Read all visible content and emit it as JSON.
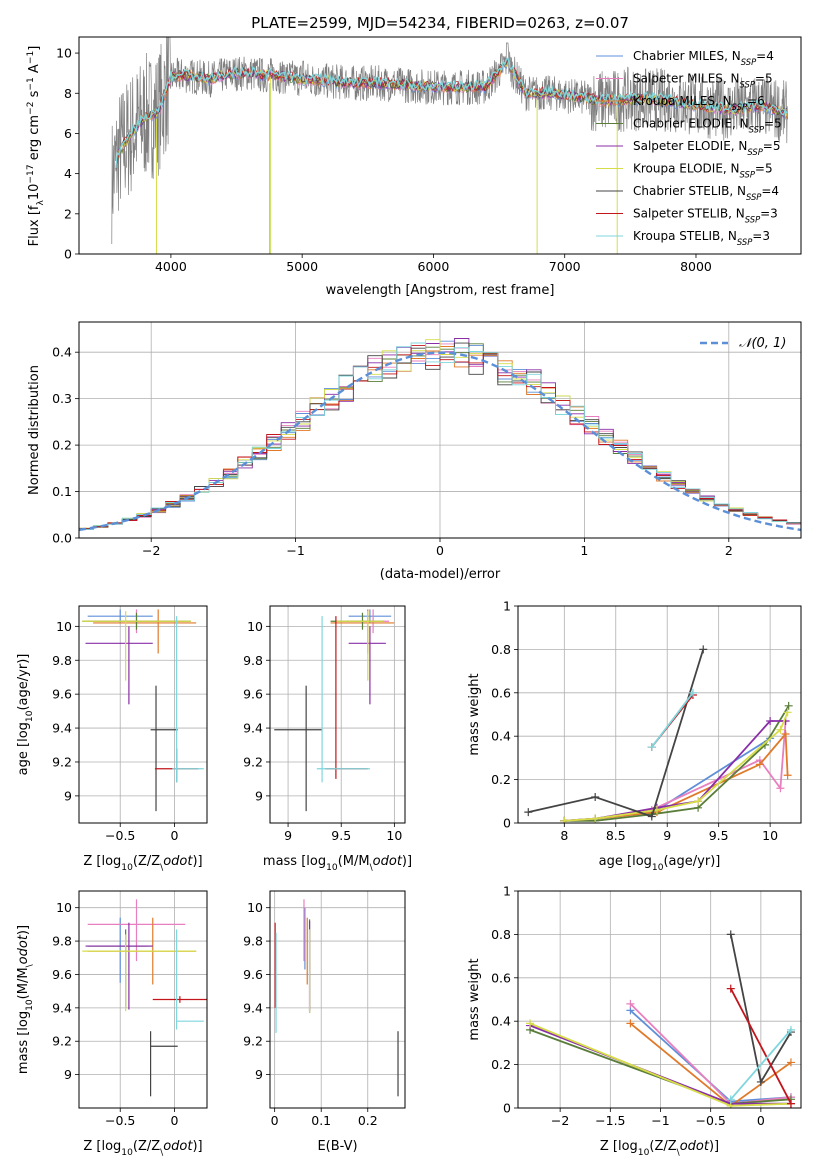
{
  "chart_data": [
    {
      "id": "spectrum",
      "type": "line",
      "title": "PLATE=2599, MJD=54234, FIBERID=0263, z=0.07",
      "xlabel": "wavelength [Angstrom, rest frame]",
      "ylabel": "Flux [f$_\\lambda$10$^{-17}$ erg cm$^{-2}$ s$^{-1}$ A$^{-1}$]",
      "ylabel_display": "Flux [fλ10⁻¹⁷ erg cm⁻² s⁻¹ A⁻¹]",
      "xlim": [
        3300,
        8800
      ],
      "ylim": [
        0,
        10.8
      ],
      "xticks": [
        4000,
        5000,
        6000,
        7000,
        8000
      ],
      "yticks": [
        0,
        2,
        4,
        6,
        8,
        10
      ],
      "grid": false,
      "legend_position": "top-right",
      "data_envelope": {
        "x": [
          3550,
          3600,
          3700,
          3800,
          3900,
          4000,
          4100,
          4200,
          4300,
          4400,
          4500,
          4600,
          4700,
          4800,
          4900,
          5000,
          5200,
          5400,
          5600,
          5800,
          6000,
          6200,
          6400,
          6563,
          6700,
          6900,
          7100,
          7300,
          7500,
          7700,
          7900,
          8100,
          8300,
          8500,
          8700
        ],
        "y": [
          3.6,
          5.0,
          6.0,
          6.8,
          7.0,
          8.8,
          8.9,
          8.8,
          8.7,
          8.9,
          9.0,
          9.0,
          8.9,
          8.9,
          8.8,
          8.7,
          8.6,
          8.5,
          8.5,
          8.4,
          8.3,
          8.3,
          8.3,
          9.6,
          8.0,
          8.0,
          7.8,
          7.6,
          7.7,
          7.7,
          7.5,
          7.3,
          7.2,
          7.4,
          7.0
        ]
      },
      "series": [
        {
          "name": "Chabrier MILES, N$_{SSP}$=4",
          "label": "Chabrier MILES, N",
          "sub": "SSP",
          "suffix": "=4",
          "color": "#5f8fd8"
        },
        {
          "name": "Salpeter MILES, N$_{SSP}$=5",
          "label": "Salpeter MILES, N",
          "sub": "SSP",
          "suffix": "=5",
          "color": "#e87fbf"
        },
        {
          "name": "Kroupa MILES, N$_{SSP}$=6",
          "label": "Kroupa MILES, N",
          "sub": "SSP",
          "suffix": "=6",
          "color": "#e07a2a"
        },
        {
          "name": "Chabrier ELODIE, N$_{SSP}$=5",
          "label": "Chabrier ELODIE, N",
          "sub": "SSP",
          "suffix": "=5",
          "color": "#5a7d3a"
        },
        {
          "name": "Salpeter ELODIE, N$_{SSP}$=5",
          "label": "Salpeter ELODIE, N",
          "sub": "SSP",
          "suffix": "=5",
          "color": "#8a2ea8"
        },
        {
          "name": "Kroupa ELODIE, N$_{SSP}$=5",
          "label": "Kroupa ELODIE, N",
          "sub": "SSP",
          "suffix": "=5",
          "color": "#d6dd48"
        },
        {
          "name": "Chabrier STELIB, N$_{SSP}$=4",
          "label": "Chabrier STELIB, N",
          "sub": "SSP",
          "suffix": "=4",
          "color": "#444444"
        },
        {
          "name": "Salpeter STELIB, N$_{SSP}$=3",
          "label": "Salpeter STELIB, N",
          "sub": "SSP",
          "suffix": "=3",
          "color": "#c2161c"
        },
        {
          "name": "Kroupa STELIB, N$_{SSP}$=3",
          "label": "Kroupa STELIB, N",
          "sub": "SSP",
          "suffix": "=3",
          "color": "#7fd6dc"
        }
      ]
    },
    {
      "id": "residuals",
      "type": "histogram",
      "xlabel": "(data-model)/error",
      "ylabel": "Normed distribution",
      "xlim": [
        -2.5,
        2.5
      ],
      "ylim": [
        0,
        0.465
      ],
      "xticks": [
        -2,
        -1,
        0,
        1,
        2
      ],
      "yticks": [
        0.0,
        0.1,
        0.2,
        0.3,
        0.4
      ],
      "grid": true,
      "legend_position": "top-right",
      "reference": {
        "name": "$\\mathcal{N}(0,1)$",
        "label": "𝒩(0, 1)",
        "color": "#5b8fd8",
        "mean": 0,
        "sigma": 1
      },
      "bin_width": 0.1
    },
    {
      "id": "age_vs_Z",
      "type": "errorbar",
      "xlabel": "Z [log$_{10}$(Z/Z$_\\odot$)]",
      "ylabel": "age  [log$_{10}$(age/yr)]",
      "xlim": [
        -0.88,
        0.3
      ],
      "ylim": [
        8.84,
        10.12
      ],
      "xticks": [
        -0.5,
        0.0
      ],
      "yticks": [
        9.0,
        9.2,
        9.4,
        9.6,
        9.8,
        10.0
      ],
      "grid": true,
      "points": [
        {
          "x": -0.5,
          "xerr": [
            0.3,
            0.3
          ],
          "y": 10.06,
          "yerr": [
            0.04,
            0.04
          ],
          "color": "#5f8fd8"
        },
        {
          "x": -0.35,
          "xerr": [
            0.45,
            0.45
          ],
          "y": 10.03,
          "yerr": [
            0.07,
            0.07
          ],
          "color": "#e87fbf"
        },
        {
          "x": -0.15,
          "xerr": [
            0.6,
            0.35
          ],
          "y": 10.02,
          "yerr": [
            0.18,
            0.08
          ],
          "color": "#e07a2a"
        },
        {
          "x": -0.35,
          "xerr": [
            0.5,
            0.5
          ],
          "y": 10.03,
          "yerr": [
            0.05,
            0.05
          ],
          "color": "#5a7d3a"
        },
        {
          "x": -0.42,
          "xerr": [
            0.4,
            0.22
          ],
          "y": 9.9,
          "yerr": [
            0.36,
            0.1
          ],
          "color": "#8a2ea8"
        },
        {
          "x": -0.45,
          "xerr": [
            0.4,
            0.6
          ],
          "y": 10.03,
          "yerr": [
            0.35,
            0.06
          ],
          "color": "#d6dd48"
        },
        {
          "x": -0.17,
          "xerr": [
            0.05,
            0.2
          ],
          "y": 9.39,
          "yerr": [
            0.48,
            0.26
          ],
          "color": "#444444"
        },
        {
          "x": 0.02,
          "xerr": [
            0.2,
            0.2
          ],
          "y": 9.16,
          "yerr": [
            0.08,
            0.12
          ],
          "color": "#c2161c"
        },
        {
          "x": 0.02,
          "xerr": [
            0.04,
            0.25
          ],
          "y": 9.16,
          "yerr": [
            0.08,
            0.9
          ],
          "color": "#7fd6dc"
        }
      ]
    },
    {
      "id": "age_vs_mass",
      "type": "errorbar",
      "xlabel": "mass [log$_{10}$(M/M$_\\odot$)]",
      "ylabel": "",
      "xlim": [
        8.83,
        10.1
      ],
      "ylim": [
        8.84,
        10.12
      ],
      "xticks": [
        9.0,
        9.5,
        10.0
      ],
      "yticks": [
        9.0,
        9.2,
        9.4,
        9.6,
        9.8,
        10.0
      ],
      "grid": true,
      "points": [
        {
          "x": 9.77,
          "xerr": [
            0.2,
            0.2
          ],
          "y": 10.06,
          "yerr": [
            0.04,
            0.04
          ],
          "color": "#5f8fd8"
        },
        {
          "x": 9.8,
          "xerr": [
            0.25,
            0.15
          ],
          "y": 10.03,
          "yerr": [
            0.07,
            0.07
          ],
          "color": "#e87fbf"
        },
        {
          "x": 9.75,
          "xerr": [
            0.35,
            0.25
          ],
          "y": 10.02,
          "yerr": [
            0.18,
            0.08
          ],
          "color": "#e07a2a"
        },
        {
          "x": 9.7,
          "xerr": [
            0.3,
            0.2
          ],
          "y": 10.03,
          "yerr": [
            0.05,
            0.05
          ],
          "color": "#5a7d3a"
        },
        {
          "x": 9.77,
          "xerr": [
            0.2,
            0.15
          ],
          "y": 9.9,
          "yerr": [
            0.36,
            0.1
          ],
          "color": "#8a2ea8"
        },
        {
          "x": 9.75,
          "xerr": [
            0.3,
            0.15
          ],
          "y": 10.03,
          "yerr": [
            0.35,
            0.06
          ],
          "color": "#d6dd48"
        },
        {
          "x": 9.17,
          "xerr": [
            0.3,
            0.15
          ],
          "y": 9.39,
          "yerr": [
            0.48,
            0.26
          ],
          "color": "#444444"
        },
        {
          "x": 9.45,
          "xerr": [
            0.1,
            0.3
          ],
          "y": 9.16,
          "yerr": [
            0.06,
            0.9
          ],
          "color": "#c2161c"
        },
        {
          "x": 9.32,
          "xerr": [
            0.05,
            0.45
          ],
          "y": 9.16,
          "yerr": [
            0.08,
            0.9
          ],
          "color": "#7fd6dc"
        }
      ]
    },
    {
      "id": "massweight_vs_age",
      "type": "line",
      "xlabel": "age  [log$_{10}$(age/yr)]",
      "ylabel": "mass weight",
      "xlim": [
        7.55,
        10.3
      ],
      "ylim": [
        0,
        1.0
      ],
      "xticks": [
        8.0,
        8.5,
        9.0,
        9.5,
        10.0
      ],
      "yticks": [
        0.0,
        0.2,
        0.4,
        0.6,
        0.8,
        1.0
      ],
      "grid": true,
      "series": [
        {
          "color": "#5f8fd8",
          "x": [
            8.0,
            8.3,
            8.9,
            10.0
          ],
          "y": [
            0.01,
            0.02,
            0.06,
            0.39
          ]
        },
        {
          "color": "#e87fbf",
          "x": [
            8.0,
            8.3,
            8.85,
            9.9,
            10.1,
            10.15
          ],
          "y": [
            0.01,
            0.02,
            0.06,
            0.29,
            0.16,
            0.47
          ]
        },
        {
          "color": "#e07a2a",
          "x": [
            8.3,
            8.9,
            9.9,
            10.15,
            10.17
          ],
          "y": [
            0.02,
            0.05,
            0.27,
            0.41,
            0.22
          ]
        },
        {
          "color": "#5a7d3a",
          "x": [
            8.0,
            8.3,
            8.85,
            9.3,
            9.95,
            10.18
          ],
          "y": [
            0.01,
            0.01,
            0.04,
            0.07,
            0.36,
            0.54
          ]
        },
        {
          "color": "#8a2ea8",
          "x": [
            8.0,
            8.3,
            8.9,
            9.3,
            10.0,
            10.15
          ],
          "y": [
            0.01,
            0.02,
            0.07,
            0.1,
            0.47,
            0.47
          ]
        },
        {
          "color": "#d6dd48",
          "x": [
            8.0,
            8.3,
            8.9,
            9.3,
            10.1,
            10.17
          ],
          "y": [
            0.01,
            0.02,
            0.06,
            0.1,
            0.43,
            0.51
          ]
        },
        {
          "color": "#444444",
          "x": [
            7.65,
            8.3,
            8.85,
            9.35
          ],
          "y": [
            0.05,
            0.12,
            0.03,
            0.8
          ]
        },
        {
          "color": "#c2161c",
          "x": [
            8.85,
            9.25
          ],
          "y": [
            0.35,
            0.59
          ]
        },
        {
          "color": "#7fd6dc",
          "x": [
            8.85,
            9.25
          ],
          "y": [
            0.35,
            0.6
          ]
        }
      ]
    },
    {
      "id": "mass_vs_Z",
      "type": "errorbar",
      "xlabel": "Z [log$_{10}$(Z/Z$_\\odot$)]",
      "ylabel": "mass [log$_{10}$(M/M$_\\odot$)]",
      "xlim": [
        -0.88,
        0.3
      ],
      "ylim": [
        8.8,
        10.1
      ],
      "xticks": [
        -0.5,
        0.0
      ],
      "yticks": [
        9.0,
        9.2,
        9.4,
        9.6,
        9.8,
        10.0
      ],
      "grid": true,
      "points": [
        {
          "x": -0.5,
          "xerr": [
            0.3,
            0.3
          ],
          "y": 9.77,
          "yerr": [
            0.22,
            0.17
          ],
          "color": "#5f8fd8"
        },
        {
          "x": -0.35,
          "xerr": [
            0.45,
            0.45
          ],
          "y": 9.9,
          "yerr": [
            0.22,
            0.15
          ],
          "color": "#e87fbf"
        },
        {
          "x": -0.2,
          "xerr": [
            0.6,
            0.4
          ],
          "y": 9.74,
          "yerr": [
            0.2,
            0.2
          ],
          "color": "#e07a2a"
        },
        {
          "x": -0.45,
          "xerr": [
            0.35,
            0.2
          ],
          "y": 9.77,
          "yerr": [
            0.37,
            0.1
          ],
          "color": "#5a7d3a"
        },
        {
          "x": -0.42,
          "xerr": [
            0.4,
            0.22
          ],
          "y": 9.77,
          "yerr": [
            0.38,
            0.14
          ],
          "color": "#8a2ea8"
        },
        {
          "x": -0.45,
          "xerr": [
            0.4,
            0.65
          ],
          "y": 9.74,
          "yerr": [
            0.36,
            0.1
          ],
          "color": "#d6dd48"
        },
        {
          "x": -0.22,
          "xerr": [
            0.0,
            0.25
          ],
          "y": 9.17,
          "yerr": [
            0.3,
            0.09
          ],
          "color": "#444444"
        },
        {
          "x": 0.05,
          "xerr": [
            0.25,
            0.25
          ],
          "y": 9.45,
          "yerr": [
            0.02,
            0.02
          ],
          "color": "#c2161c"
        },
        {
          "x": 0.02,
          "xerr": [
            0.0,
            0.25
          ],
          "y": 9.32,
          "yerr": [
            0.05,
            0.55
          ],
          "color": "#7fd6dc"
        }
      ]
    },
    {
      "id": "mass_vs_EBV",
      "type": "errorbar",
      "xlabel": "E(B-V)",
      "ylabel": "",
      "xlim": [
        -0.01,
        0.28
      ],
      "ylim": [
        8.8,
        10.1
      ],
      "xticks": [
        0.0,
        0.1,
        0.2
      ],
      "yticks": [
        9.0,
        9.2,
        9.4,
        9.6,
        9.8,
        10.0
      ],
      "grid": true,
      "points": [
        {
          "x": 0.065,
          "y": 9.85,
          "yerr": [
            0.22,
            0.15
          ],
          "color": "#5f8fd8"
        },
        {
          "x": 0.063,
          "y": 9.9,
          "yerr": [
            0.22,
            0.15
          ],
          "color": "#e87fbf"
        },
        {
          "x": 0.07,
          "y": 9.74,
          "yerr": [
            0.2,
            0.2
          ],
          "color": "#e07a2a"
        },
        {
          "x": 0.075,
          "y": 9.75,
          "yerr": [
            0.38,
            0.18
          ],
          "color": "#5a7d3a"
        },
        {
          "x": 0.075,
          "y": 9.8,
          "yerr": [
            0.42,
            0.12
          ],
          "color": "#8a2ea8"
        },
        {
          "x": 0.075,
          "y": 9.74,
          "yerr": [
            0.37,
            0.13
          ],
          "color": "#d6dd48"
        },
        {
          "x": 0.265,
          "y": 9.05,
          "yerr": [
            0.18,
            0.21
          ],
          "color": "#444444"
        },
        {
          "x": 0.001,
          "y": 9.75,
          "yerr": [
            0.35,
            0.16
          ],
          "color": "#c2161c"
        },
        {
          "x": 0.003,
          "y": 9.3,
          "yerr": [
            0.05,
            0.55
          ],
          "color": "#7fd6dc"
        }
      ]
    },
    {
      "id": "massweight_vs_Z",
      "type": "line",
      "xlabel": "Z [log$_{10}$(Z/Z$_\\odot$)]",
      "ylabel": "mass weight",
      "xlim": [
        -2.42,
        0.4
      ],
      "ylim": [
        0,
        1.0
      ],
      "xticks": [
        -2.0,
        -1.5,
        -1.0,
        -0.5,
        0.0
      ],
      "yticks": [
        0.0,
        0.2,
        0.4,
        0.6,
        0.8,
        1.0
      ],
      "grid": true,
      "series": [
        {
          "color": "#5f8fd8",
          "x": [
            -1.3,
            -0.3,
            0.3
          ],
          "y": [
            0.45,
            0.03,
            0.05
          ]
        },
        {
          "color": "#e87fbf",
          "x": [
            -1.3,
            -0.3,
            0.3
          ],
          "y": [
            0.48,
            0.02,
            0.05
          ]
        },
        {
          "color": "#e07a2a",
          "x": [
            -1.3,
            -0.3,
            0.3
          ],
          "y": [
            0.39,
            0.01,
            0.21
          ]
        },
        {
          "color": "#5a7d3a",
          "x": [
            -2.3,
            -0.3,
            0.3
          ],
          "y": [
            0.36,
            0.02,
            0.04
          ]
        },
        {
          "color": "#8a2ea8",
          "x": [
            -2.3,
            -0.3,
            0.3
          ],
          "y": [
            0.38,
            0.02,
            0.02
          ]
        },
        {
          "color": "#d6dd48",
          "x": [
            -2.3,
            -0.3,
            0.3
          ],
          "y": [
            0.39,
            0.01,
            0.02
          ]
        },
        {
          "color": "#444444",
          "x": [
            -0.3,
            0.0,
            0.3
          ],
          "y": [
            0.8,
            0.12,
            0.35
          ]
        },
        {
          "color": "#c2161c",
          "x": [
            -0.3,
            0.3
          ],
          "y": [
            0.55,
            0.02
          ]
        },
        {
          "color": "#7fd6dc",
          "x": [
            -0.3,
            0.3
          ],
          "y": [
            0.04,
            0.36
          ]
        }
      ]
    }
  ]
}
